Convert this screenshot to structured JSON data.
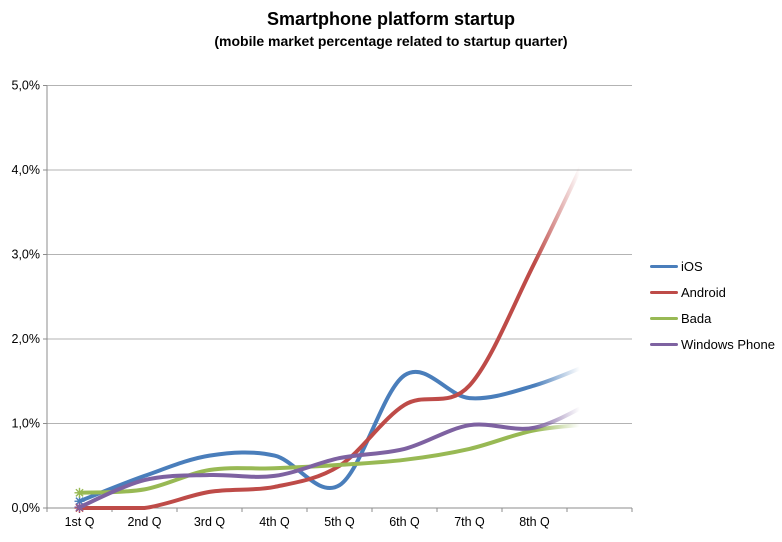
{
  "page": {
    "title": "Smartphone platform startup",
    "subtitle": "(mobile market percentage related to startup quarter)"
  },
  "chart_data": {
    "type": "line",
    "smoothed": true,
    "title": "Smartphone platform startup",
    "subtitle": "(mobile market percentage related to startup quarter)",
    "categories": [
      "1st Q",
      "2nd Q",
      "3rd Q",
      "4th Q",
      "5th Q",
      "6th Q",
      "7th Q",
      "8th Q"
    ],
    "note": "lines continue one unlabeled quarter beyond 8th Q and fade out; asterisk marker on first data point of each series",
    "unit": "percent",
    "series": [
      {
        "name": "iOS",
        "color": "#4A7EBB",
        "values": [
          0.08,
          0.38,
          0.62,
          0.62,
          0.27,
          1.57,
          1.3,
          1.45,
          1.75
        ]
      },
      {
        "name": "Android",
        "color": "#BE4B48",
        "values": [
          0.0,
          0.0,
          0.19,
          0.25,
          0.5,
          1.22,
          1.45,
          2.9,
          4.5
        ]
      },
      {
        "name": "Bada",
        "color": "#98B954",
        "values": [
          0.18,
          0.22,
          0.45,
          0.47,
          0.51,
          0.57,
          0.7,
          0.92,
          1.0
        ]
      },
      {
        "name": "Windows Phone",
        "color": "#7E62A1",
        "values": [
          0.01,
          0.33,
          0.39,
          0.38,
          0.59,
          0.7,
          0.98,
          0.95,
          1.3
        ]
      }
    ],
    "ylim": [
      0,
      5
    ],
    "ytick_labels": [
      "0,0%",
      "1,0%",
      "2,0%",
      "3,0%",
      "4,0%",
      "5,0%"
    ],
    "grid": true,
    "legend_position": "right",
    "axis_color": "#8c8c8c",
    "gridline_color": "#b3b3b3",
    "label_color": "#000000"
  }
}
